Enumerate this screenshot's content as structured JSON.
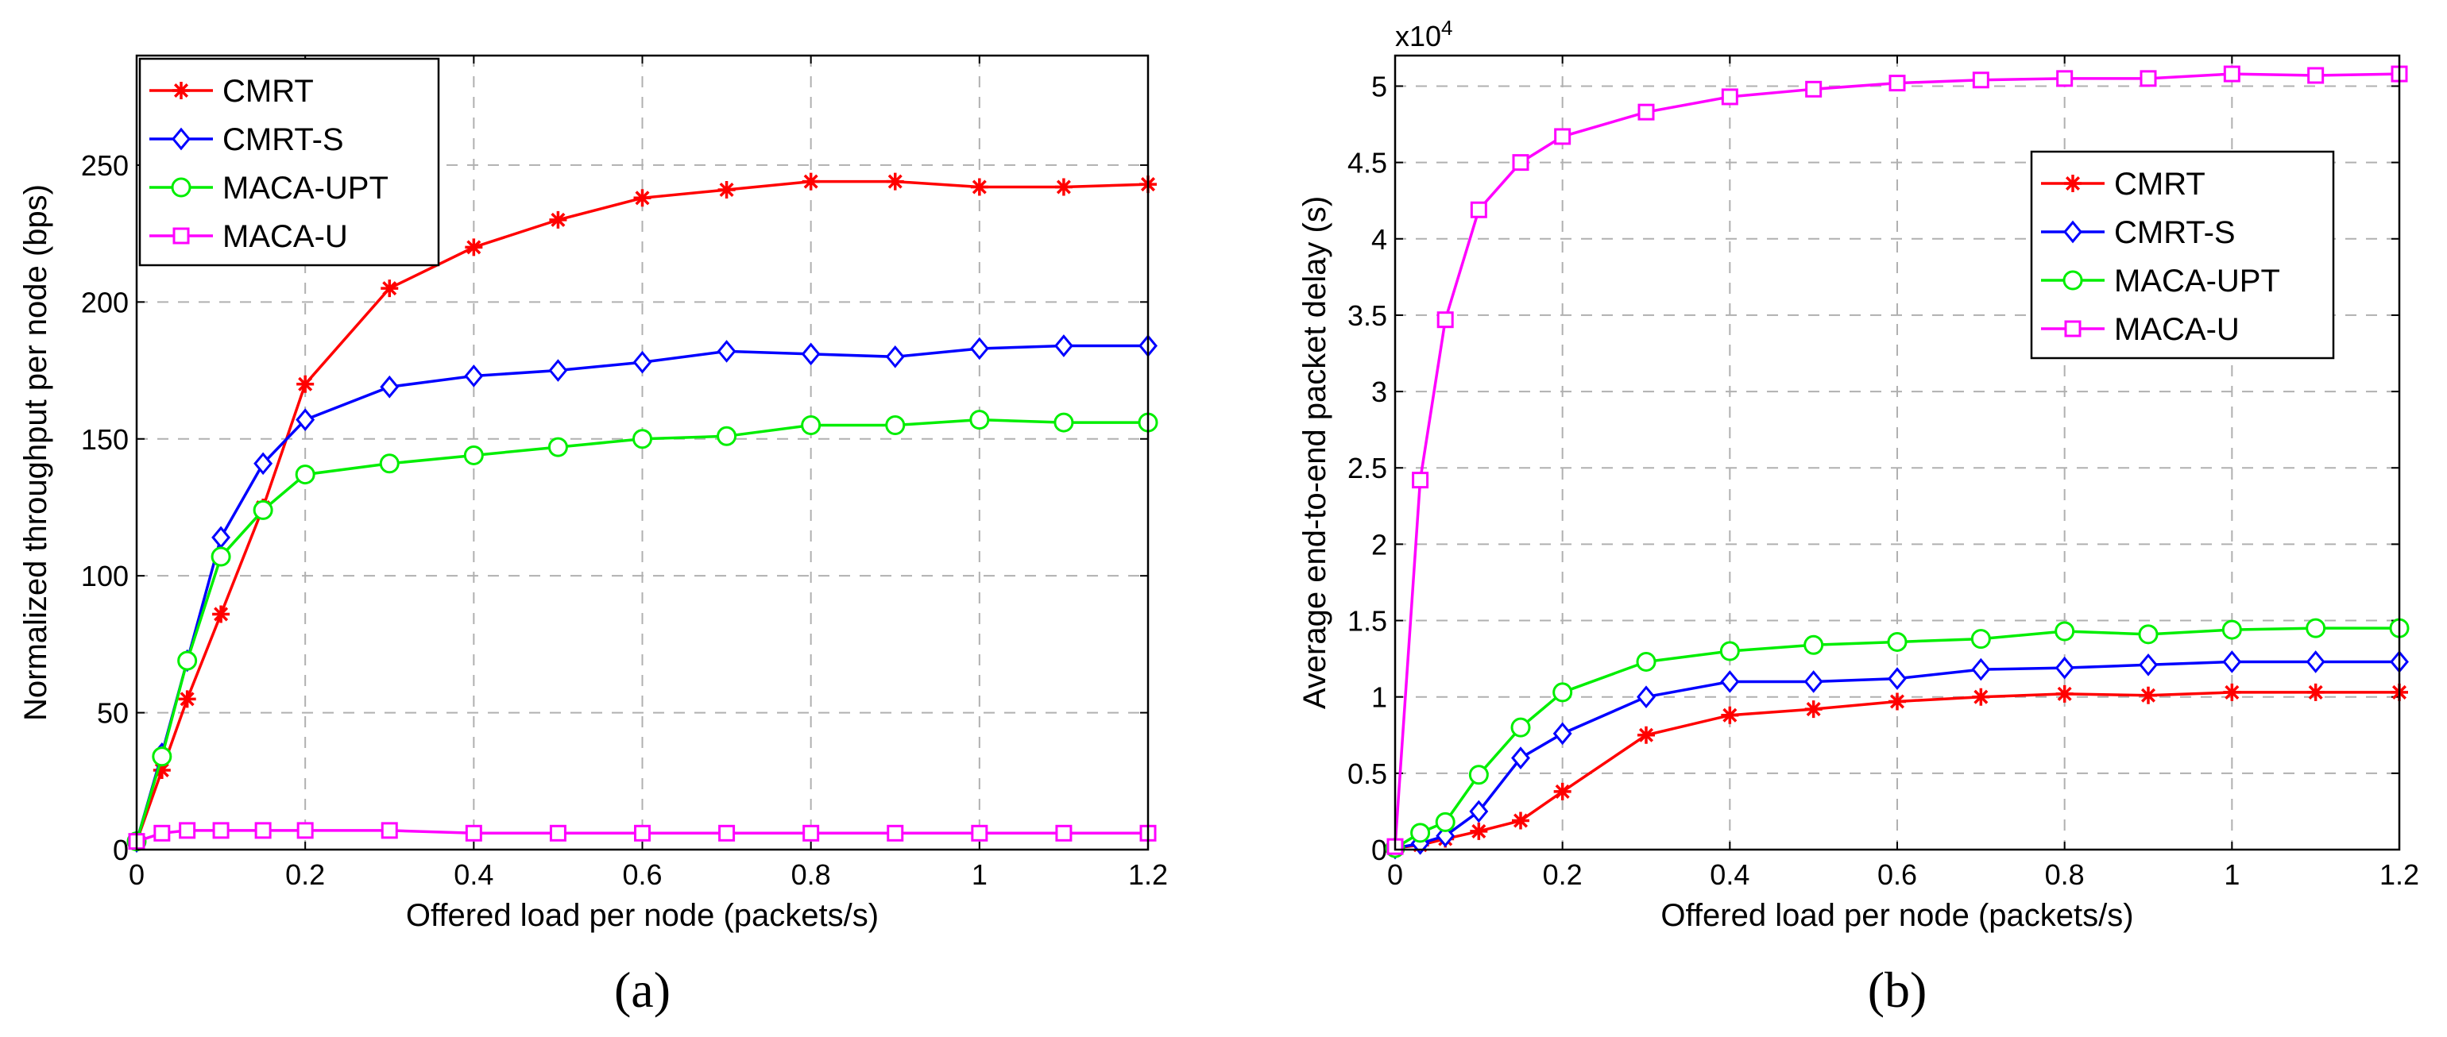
{
  "chart_data": [
    {
      "type": "line",
      "caption": "(a)",
      "xlabel": "Offered load per node (packets/s)",
      "ylabel": "Normalized throughput per node (bps)",
      "xlim": [
        0,
        1.2
      ],
      "ylim": [
        0,
        290
      ],
      "xticks": [
        "0",
        "0.2",
        "0.4",
        "0.6",
        "0.8",
        "1",
        "1.2"
      ],
      "yticks": [
        "0",
        "50",
        "100",
        "150",
        "200",
        "250"
      ],
      "legend_position": "top-left",
      "grid": true,
      "series": [
        {
          "name": "CMRT",
          "color": "#ff0000",
          "marker": "star",
          "x": [
            0,
            0.03,
            0.06,
            0.1,
            0.15,
            0.2,
            0.3,
            0.4,
            0.5,
            0.6,
            0.7,
            0.8,
            0.9,
            1.0,
            1.1,
            1.2
          ],
          "y": [
            3,
            29,
            55,
            86,
            125,
            170,
            205,
            220,
            230,
            238,
            241,
            244,
            244,
            242,
            242,
            243
          ]
        },
        {
          "name": "CMRT-S",
          "color": "#0000ff",
          "marker": "diamond",
          "x": [
            0,
            0.03,
            0.06,
            0.1,
            0.15,
            0.2,
            0.3,
            0.4,
            0.5,
            0.6,
            0.7,
            0.8,
            0.9,
            1.0,
            1.1,
            1.2
          ],
          "y": [
            3,
            35,
            69,
            114,
            141,
            157,
            169,
            173,
            175,
            178,
            182,
            181,
            180,
            183,
            184,
            184
          ]
        },
        {
          "name": "MACA-UPT",
          "color": "#00ee00",
          "marker": "circle",
          "x": [
            0,
            0.03,
            0.06,
            0.1,
            0.15,
            0.2,
            0.3,
            0.4,
            0.5,
            0.6,
            0.7,
            0.8,
            0.9,
            1.0,
            1.1,
            1.2
          ],
          "y": [
            3,
            34,
            69,
            107,
            124,
            137,
            141,
            144,
            147,
            150,
            151,
            155,
            155,
            157,
            156,
            156
          ]
        },
        {
          "name": "MACA-U",
          "color": "#ff00ff",
          "marker": "square",
          "x": [
            0,
            0.03,
            0.06,
            0.1,
            0.15,
            0.2,
            0.3,
            0.4,
            0.5,
            0.6,
            0.7,
            0.8,
            0.9,
            1.0,
            1.1,
            1.2
          ],
          "y": [
            3,
            6,
            7,
            7,
            7,
            7,
            7,
            6,
            6,
            6,
            6,
            6,
            6,
            6,
            6,
            6
          ]
        }
      ]
    },
    {
      "type": "line",
      "caption": "(b)",
      "xlabel": "Offered load per node (packets/s)",
      "ylabel": "Average end-to-end packet delay (s)",
      "scale_label": "x10",
      "scale_exponent": "4",
      "xlim": [
        0,
        1.2
      ],
      "ylim": [
        0,
        5.2
      ],
      "xticks": [
        "0",
        "0.2",
        "0.4",
        "0.6",
        "0.8",
        "1",
        "1.2"
      ],
      "yticks": [
        "0",
        "0.5",
        "1",
        "1.5",
        "2",
        "2.5",
        "3",
        "3.5",
        "4",
        "4.5",
        "5"
      ],
      "legend_position": "upper-right",
      "grid": true,
      "series": [
        {
          "name": "CMRT",
          "color": "#ff0000",
          "marker": "star",
          "x": [
            0,
            0.03,
            0.06,
            0.1,
            0.15,
            0.2,
            0.3,
            0.4,
            0.5,
            0.6,
            0.7,
            0.8,
            0.9,
            1.0,
            1.1,
            1.2
          ],
          "y": [
            0.01,
            0.03,
            0.07,
            0.12,
            0.19,
            0.38,
            0.75,
            0.88,
            0.92,
            0.97,
            1.0,
            1.02,
            1.01,
            1.03,
            1.03,
            1.03
          ]
        },
        {
          "name": "CMRT-S",
          "color": "#0000ff",
          "marker": "diamond",
          "x": [
            0,
            0.03,
            0.06,
            0.1,
            0.15,
            0.2,
            0.3,
            0.4,
            0.5,
            0.6,
            0.7,
            0.8,
            0.9,
            1.0,
            1.1,
            1.2
          ],
          "y": [
            0.01,
            0.04,
            0.09,
            0.25,
            0.6,
            0.76,
            1.0,
            1.1,
            1.1,
            1.12,
            1.18,
            1.19,
            1.21,
            1.23,
            1.23,
            1.23
          ]
        },
        {
          "name": "MACA-UPT",
          "color": "#00ee00",
          "marker": "circle",
          "x": [
            0,
            0.03,
            0.06,
            0.1,
            0.15,
            0.2,
            0.3,
            0.4,
            0.5,
            0.6,
            0.7,
            0.8,
            0.9,
            1.0,
            1.1,
            1.2
          ],
          "y": [
            0.01,
            0.11,
            0.18,
            0.49,
            0.8,
            1.03,
            1.23,
            1.3,
            1.34,
            1.36,
            1.38,
            1.43,
            1.41,
            1.44,
            1.45,
            1.45
          ]
        },
        {
          "name": "MACA-U",
          "color": "#ff00ff",
          "marker": "square",
          "x": [
            0,
            0.03,
            0.06,
            0.1,
            0.15,
            0.2,
            0.3,
            0.4,
            0.5,
            0.6,
            0.7,
            0.8,
            0.9,
            1.0,
            1.1,
            1.2
          ],
          "y": [
            0.02,
            2.42,
            3.47,
            4.19,
            4.5,
            4.67,
            4.83,
            4.93,
            4.98,
            5.02,
            5.04,
            5.05,
            5.05,
            5.08,
            5.07,
            5.08
          ]
        }
      ]
    }
  ]
}
